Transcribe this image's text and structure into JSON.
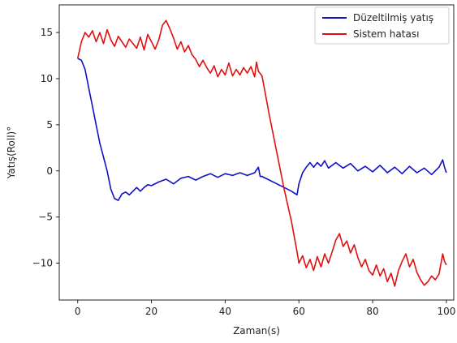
{
  "chart_data": {
    "type": "line",
    "xlabel": "Zaman(s)",
    "ylabel": "Yatış(Roll)°",
    "xlim": [
      -5,
      102
    ],
    "ylim": [
      -14,
      18
    ],
    "xticks": [
      0,
      20,
      40,
      60,
      80,
      100
    ],
    "yticks": [
      -10,
      -5,
      0,
      5,
      10,
      15
    ],
    "tick_labels_x": [
      "0",
      "20",
      "40",
      "60",
      "80",
      "100"
    ],
    "tick_labels_y": [
      "−10",
      "−5",
      "0",
      "5",
      "10",
      "15"
    ],
    "legend_position": "top-right",
    "grid": false,
    "series": [
      {
        "name": "Düzeltilmiş yatış",
        "color": "#1010c8",
        "points": [
          [
            0,
            12.2
          ],
          [
            1,
            12.0
          ],
          [
            2,
            11.0
          ],
          [
            3,
            9.0
          ],
          [
            4,
            7.0
          ],
          [
            5,
            5.0
          ],
          [
            6,
            3.0
          ],
          [
            7,
            1.5
          ],
          [
            8,
            0.0
          ],
          [
            9,
            -2.0
          ],
          [
            10,
            -3.0
          ],
          [
            11,
            -3.2
          ],
          [
            12,
            -2.5
          ],
          [
            13,
            -2.3
          ],
          [
            14,
            -2.6
          ],
          [
            15,
            -2.2
          ],
          [
            16,
            -1.8
          ],
          [
            17,
            -2.2
          ],
          [
            18,
            -1.8
          ],
          [
            19,
            -1.5
          ],
          [
            20,
            -1.6
          ],
          [
            22,
            -1.2
          ],
          [
            24,
            -0.9
          ],
          [
            26,
            -1.4
          ],
          [
            28,
            -0.8
          ],
          [
            30,
            -0.6
          ],
          [
            32,
            -1.0
          ],
          [
            34,
            -0.6
          ],
          [
            36,
            -0.3
          ],
          [
            38,
            -0.7
          ],
          [
            40,
            -0.3
          ],
          [
            42,
            -0.5
          ],
          [
            44,
            -0.2
          ],
          [
            46,
            -0.5
          ],
          [
            48,
            -0.2
          ],
          [
            49,
            0.4
          ],
          [
            49.5,
            -0.6
          ],
          [
            50,
            -0.6
          ],
          [
            52,
            -1.0
          ],
          [
            54,
            -1.4
          ],
          [
            56,
            -1.8
          ],
          [
            58,
            -2.2
          ],
          [
            59.5,
            -2.6
          ],
          [
            60,
            -1.4
          ],
          [
            61,
            -0.2
          ],
          [
            62,
            0.4
          ],
          [
            63,
            0.9
          ],
          [
            64,
            0.4
          ],
          [
            65,
            0.9
          ],
          [
            66,
            0.5
          ],
          [
            67,
            1.1
          ],
          [
            68,
            0.3
          ],
          [
            70,
            0.9
          ],
          [
            72,
            0.3
          ],
          [
            74,
            0.8
          ],
          [
            76,
            0.0
          ],
          [
            78,
            0.5
          ],
          [
            80,
            -0.1
          ],
          [
            82,
            0.6
          ],
          [
            84,
            -0.2
          ],
          [
            86,
            0.4
          ],
          [
            88,
            -0.3
          ],
          [
            90,
            0.5
          ],
          [
            92,
            -0.2
          ],
          [
            94,
            0.3
          ],
          [
            96,
            -0.4
          ],
          [
            98,
            0.4
          ],
          [
            99,
            1.2
          ],
          [
            99.5,
            0.4
          ],
          [
            100,
            -0.2
          ]
        ]
      },
      {
        "name": "Sistem hatası",
        "color": "#e01010",
        "points": [
          [
            0,
            12.2
          ],
          [
            1,
            14.0
          ],
          [
            2,
            15.0
          ],
          [
            3,
            14.5
          ],
          [
            4,
            15.2
          ],
          [
            5,
            14.0
          ],
          [
            6,
            15.0
          ],
          [
            7,
            13.8
          ],
          [
            8,
            15.3
          ],
          [
            9,
            14.2
          ],
          [
            10,
            13.5
          ],
          [
            11,
            14.6
          ],
          [
            12,
            14.0
          ],
          [
            13,
            13.4
          ],
          [
            14,
            14.3
          ],
          [
            15,
            13.8
          ],
          [
            16,
            13.3
          ],
          [
            17,
            14.5
          ],
          [
            18,
            13.1
          ],
          [
            19,
            14.8
          ],
          [
            20,
            14.0
          ],
          [
            21,
            13.2
          ],
          [
            22,
            14.2
          ],
          [
            23,
            15.8
          ],
          [
            24,
            16.3
          ],
          [
            25,
            15.4
          ],
          [
            26,
            14.4
          ],
          [
            27,
            13.2
          ],
          [
            28,
            14.0
          ],
          [
            29,
            12.9
          ],
          [
            30,
            13.6
          ],
          [
            31,
            12.6
          ],
          [
            32,
            12.1
          ],
          [
            33,
            11.3
          ],
          [
            34,
            12.0
          ],
          [
            35,
            11.2
          ],
          [
            36,
            10.6
          ],
          [
            37,
            11.4
          ],
          [
            38,
            10.2
          ],
          [
            39,
            11.0
          ],
          [
            40,
            10.4
          ],
          [
            41,
            11.7
          ],
          [
            42,
            10.3
          ],
          [
            43,
            11.0
          ],
          [
            44,
            10.4
          ],
          [
            45,
            11.2
          ],
          [
            46,
            10.6
          ],
          [
            47,
            11.3
          ],
          [
            48,
            10.2
          ],
          [
            48.5,
            11.8
          ],
          [
            49,
            10.8
          ],
          [
            50,
            10.3
          ],
          [
            52,
            6.0
          ],
          [
            54,
            2.0
          ],
          [
            56,
            -2.0
          ],
          [
            58,
            -5.5
          ],
          [
            59.5,
            -8.8
          ],
          [
            60,
            -10.0
          ],
          [
            61,
            -9.2
          ],
          [
            62,
            -10.5
          ],
          [
            63,
            -9.6
          ],
          [
            64,
            -10.8
          ],
          [
            65,
            -9.3
          ],
          [
            66,
            -10.4
          ],
          [
            67,
            -9.0
          ],
          [
            68,
            -10.0
          ],
          [
            69,
            -8.8
          ],
          [
            70,
            -7.5
          ],
          [
            71,
            -6.8
          ],
          [
            72,
            -8.2
          ],
          [
            73,
            -7.6
          ],
          [
            74,
            -8.9
          ],
          [
            75,
            -8.0
          ],
          [
            76,
            -9.4
          ],
          [
            77,
            -10.4
          ],
          [
            78,
            -9.6
          ],
          [
            79,
            -10.8
          ],
          [
            80,
            -11.3
          ],
          [
            81,
            -10.2
          ],
          [
            82,
            -11.4
          ],
          [
            83,
            -10.6
          ],
          [
            84,
            -12.0
          ],
          [
            85,
            -11.1
          ],
          [
            86,
            -12.5
          ],
          [
            87,
            -10.8
          ],
          [
            88,
            -9.8
          ],
          [
            89,
            -9.0
          ],
          [
            90,
            -10.4
          ],
          [
            91,
            -9.6
          ],
          [
            92,
            -11.0
          ],
          [
            93,
            -11.8
          ],
          [
            94,
            -12.4
          ],
          [
            95,
            -12.0
          ],
          [
            96,
            -11.4
          ],
          [
            97,
            -11.8
          ],
          [
            98,
            -11.2
          ],
          [
            99,
            -9.0
          ],
          [
            99.5,
            -9.8
          ],
          [
            100,
            -10.2
          ]
        ]
      }
    ]
  }
}
